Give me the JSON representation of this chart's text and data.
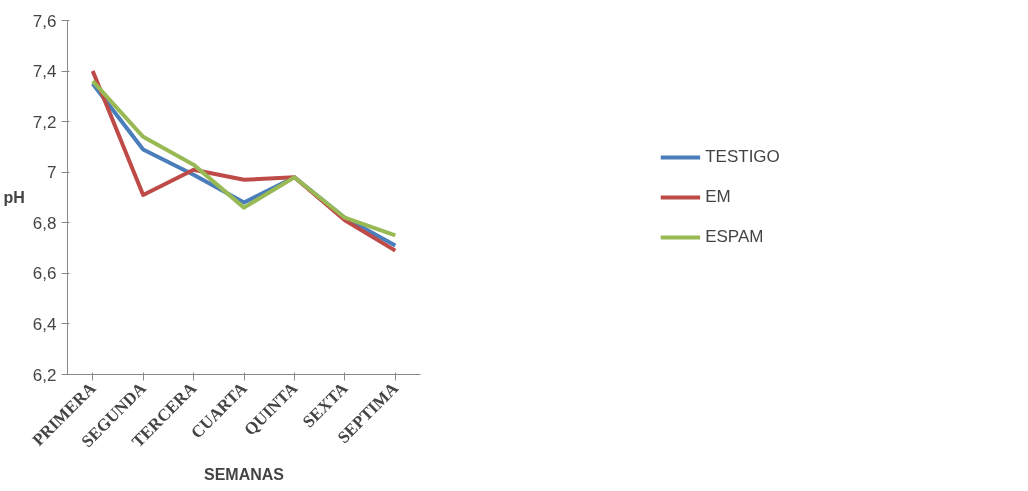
{
  "chart_data": {
    "type": "line",
    "xlabel": "SEMANAS",
    "ylabel": "pH",
    "categories": [
      "PRIMERA",
      "SEGUNDA",
      "TERCERA",
      "CUARTA",
      "QUINTA",
      "SEXTA",
      "SEPTIMA"
    ],
    "series": [
      {
        "name": "TESTIGO",
        "color": "#4a7ebb",
        "values": [
          7.35,
          7.09,
          6.99,
          6.88,
          6.98,
          6.82,
          6.71
        ]
      },
      {
        "name": "EM",
        "color": "#be4b48",
        "values": [
          7.4,
          6.91,
          7.01,
          6.97,
          6.98,
          6.81,
          6.69
        ]
      },
      {
        "name": "ESPAM",
        "color": "#98b954",
        "values": [
          7.36,
          7.14,
          7.03,
          6.86,
          6.98,
          6.82,
          6.75
        ]
      }
    ],
    "ylim": [
      6.2,
      7.6
    ],
    "yticks": [
      {
        "value": 6.2,
        "label": "6,2"
      },
      {
        "value": 6.4,
        "label": "6,4"
      },
      {
        "value": 6.6,
        "label": "6,6"
      },
      {
        "value": 6.8,
        "label": "6,8"
      },
      {
        "value": 7,
        "label": "7"
      },
      {
        "value": 7.2,
        "label": "7,2"
      },
      {
        "value": 7.4,
        "label": "7,4"
      },
      {
        "value": 7.6,
        "label": "7,6"
      }
    ],
    "grid": false,
    "legend": "right",
    "marker": "none",
    "line_style": "solid"
  }
}
